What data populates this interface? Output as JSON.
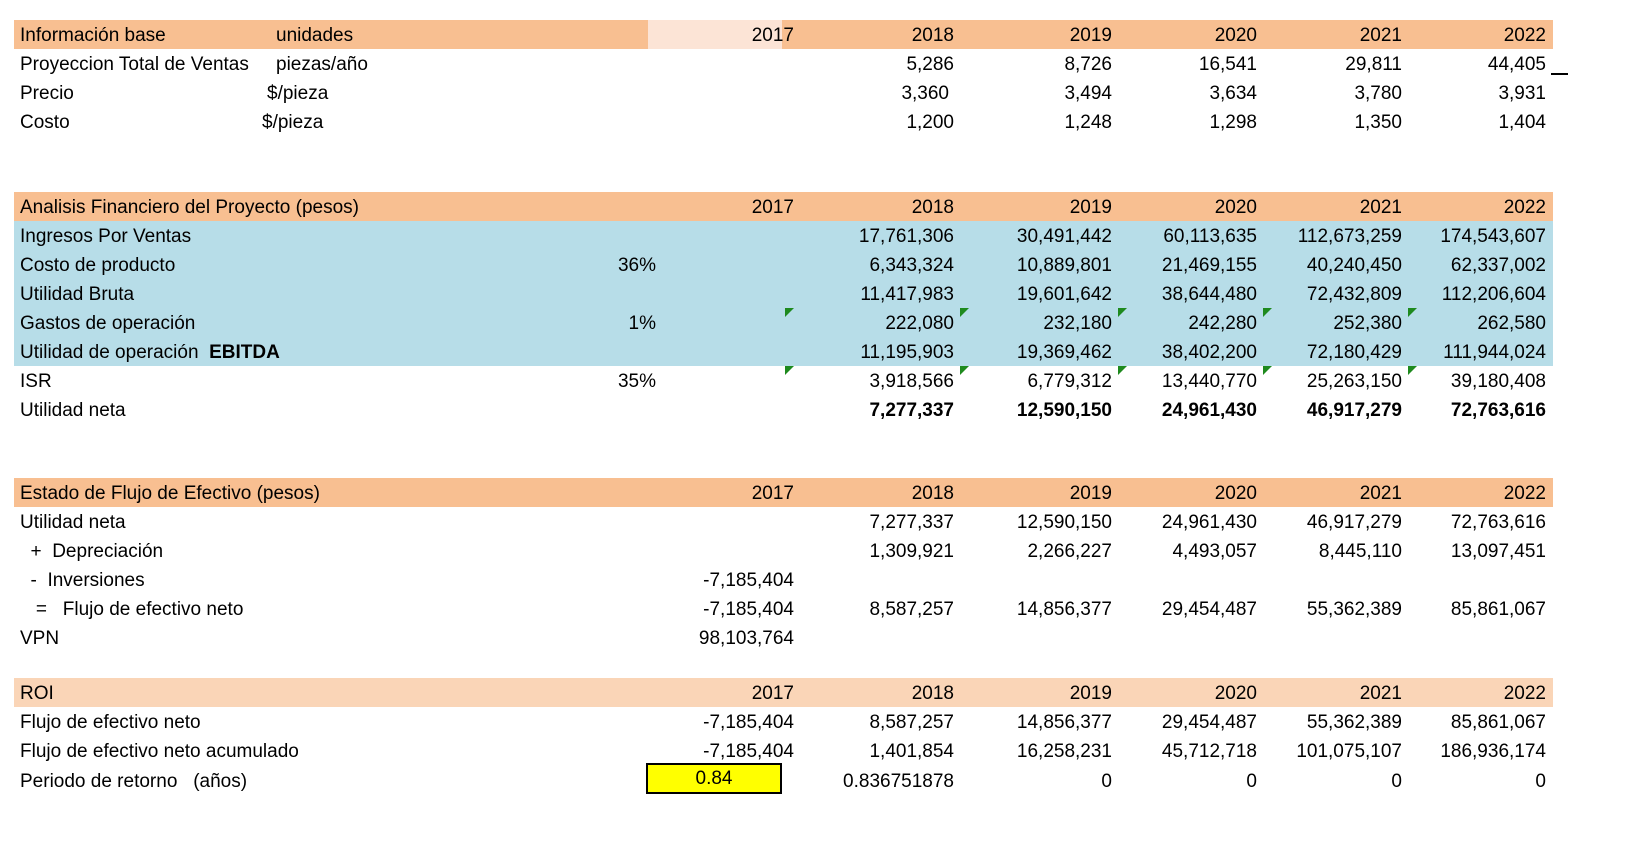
{
  "colors": {
    "header_orange": "#f8bf91",
    "header_light": "#fad5b7",
    "blue_band": "#b7dde8",
    "highlight_yellow": "#ffff00",
    "comment_marker": "#1e8a1e"
  },
  "years": [
    "2017",
    "2018",
    "2019",
    "2020",
    "2021",
    "2022"
  ],
  "info_base": {
    "title": "Información base",
    "units_header": "unidades",
    "rows": [
      {
        "label": "Proyeccion Total de Ventas",
        "unit": "piezas/año",
        "values": [
          "5,286",
          "8,726",
          "16,541",
          "29,811",
          "44,405"
        ]
      },
      {
        "label": "Precio",
        "unit": "$/pieza",
        "values": [
          "3,360",
          "3,494",
          "3,634",
          "3,780",
          "3,931"
        ]
      },
      {
        "label": "Costo",
        "unit": "$/pieza",
        "values": [
          "1,200",
          "1,248",
          "1,298",
          "1,350",
          "1,404"
        ]
      }
    ]
  },
  "financiero": {
    "title": "Analisis Financiero del Proyecto   (pesos)",
    "rows": [
      {
        "label": "Ingresos Por Ventas",
        "pct": "",
        "values": [
          "17,761,306",
          "30,491,442",
          "60,113,635",
          "112,673,259",
          "174,543,607"
        ]
      },
      {
        "label": "Costo de producto",
        "pct": "36%",
        "values": [
          "6,343,324",
          "10,889,801",
          "21,469,155",
          "40,240,450",
          "62,337,002"
        ]
      },
      {
        "label": "Utilidad Bruta",
        "pct": "",
        "values": [
          "11,417,983",
          "19,601,642",
          "38,644,480",
          "72,432,809",
          "112,206,604"
        ]
      },
      {
        "label": "Gastos de operación",
        "pct": "1%",
        "values": [
          "222,080",
          "232,180",
          "242,280",
          "252,380",
          "262,580"
        ]
      },
      {
        "label": "Utilidad de operación",
        "label_bold": "EBITDA",
        "pct": "",
        "values": [
          "11,195,903",
          "19,369,462",
          "38,402,200",
          "72,180,429",
          "111,944,024"
        ]
      }
    ],
    "isr": {
      "label": "ISR",
      "pct": "35%",
      "values": [
        "3,918,566",
        "6,779,312",
        "13,440,770",
        "25,263,150",
        "39,180,408"
      ]
    },
    "utilidad_neta": {
      "label": "Utilidad neta",
      "values": [
        "7,277,337",
        "12,590,150",
        "24,961,430",
        "46,917,279",
        "72,763,616"
      ]
    }
  },
  "flujo": {
    "title": "Estado de Flujo de Efectivo   (pesos)",
    "rows": [
      {
        "label": "Utilidad neta",
        "v2017": "",
        "values": [
          "7,277,337",
          "12,590,150",
          "24,961,430",
          "46,917,279",
          "72,763,616"
        ]
      },
      {
        "label": "  +  Depreciación",
        "v2017": "",
        "values": [
          "1,309,921",
          "2,266,227",
          "4,493,057",
          "8,445,110",
          "13,097,451"
        ]
      },
      {
        "label": "  -  Inversiones",
        "v2017": "-7,185,404",
        "values": [
          "",
          "",
          "",
          "",
          ""
        ]
      },
      {
        "label": "   =   Flujo de efectivo neto",
        "v2017": "-7,185,404",
        "values": [
          "8,587,257",
          "14,856,377",
          "29,454,487",
          "55,362,389",
          "85,861,067"
        ]
      },
      {
        "label": "VPN",
        "v2017": "98,103,764",
        "values": [
          "",
          "",
          "",
          "",
          ""
        ]
      }
    ]
  },
  "roi": {
    "title": "ROI",
    "rows": [
      {
        "label": "Flujo de efectivo neto",
        "v2017": "-7,185,404",
        "values": [
          "8,587,257",
          "14,856,377",
          "29,454,487",
          "55,362,389",
          "85,861,067"
        ]
      },
      {
        "label": "Flujo de efectivo neto acumulado",
        "v2017": "-7,185,404",
        "values": [
          "1,401,854",
          "16,258,231",
          "45,712,718",
          "101,075,107",
          "186,936,174"
        ]
      }
    ],
    "retorno": {
      "label": "Periodo de retorno   (años)",
      "v2017": "0.84",
      "values": [
        "0.836751878",
        "0",
        "0",
        "0",
        "0"
      ]
    }
  }
}
